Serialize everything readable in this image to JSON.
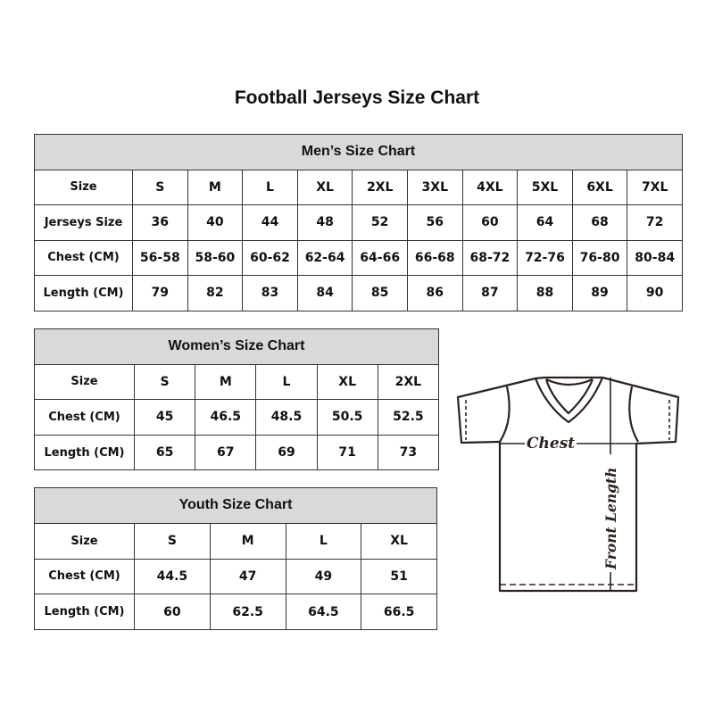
{
  "title": "Football Jerseys Size Chart",
  "men": {
    "heading": "Men’s Size Chart",
    "rows": [
      {
        "label": "Size",
        "cells": [
          "S",
          "M",
          "L",
          "XL",
          "2XL",
          "3XL",
          "4XL",
          "5XL",
          "6XL",
          "7XL"
        ]
      },
      {
        "label": "Jerseys Size",
        "cells": [
          "36",
          "40",
          "44",
          "48",
          "52",
          "56",
          "60",
          "64",
          "68",
          "72"
        ]
      },
      {
        "label": "Chest (CM)",
        "cells": [
          "56-58",
          "58-60",
          "60-62",
          "62-64",
          "64-66",
          "66-68",
          "68-72",
          "72-76",
          "76-80",
          "80-84"
        ]
      },
      {
        "label": "Length (CM)",
        "cells": [
          "79",
          "82",
          "83",
          "84",
          "85",
          "86",
          "87",
          "88",
          "89",
          "90"
        ]
      }
    ]
  },
  "women": {
    "heading": "Women’s Size Chart",
    "rows": [
      {
        "label": "Size",
        "cells": [
          "S",
          "M",
          "L",
          "XL",
          "2XL"
        ]
      },
      {
        "label": "Chest (CM)",
        "cells": [
          "45",
          "46.5",
          "48.5",
          "50.5",
          "52.5"
        ]
      },
      {
        "label": "Length (CM)",
        "cells": [
          "65",
          "67",
          "69",
          "71",
          "73"
        ]
      }
    ]
  },
  "youth": {
    "heading": "Youth Size Chart",
    "rows": [
      {
        "label": "Size",
        "cells": [
          "S",
          "M",
          "L",
          "XL"
        ]
      },
      {
        "label": "Chest (CM)",
        "cells": [
          "44.5",
          "47",
          "49",
          "51"
        ]
      },
      {
        "label": "Length (CM)",
        "cells": [
          "60",
          "62.5",
          "64.5",
          "66.5"
        ]
      }
    ]
  },
  "diagram": {
    "chest_label": "Chest",
    "length_label": "Front Length"
  }
}
